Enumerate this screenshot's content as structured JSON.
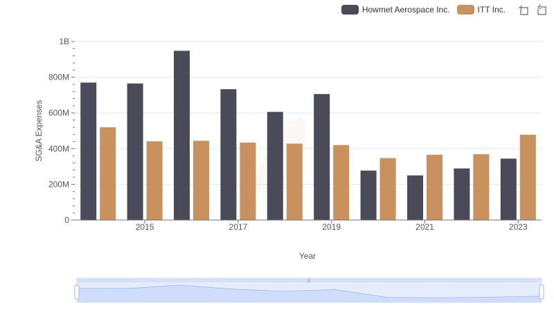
{
  "chart_data": {
    "type": "bar",
    "title": "",
    "xlabel": "Year",
    "ylabel": "SG&A Expenses",
    "x": [
      2014,
      2015,
      2016,
      2017,
      2018,
      2019,
      2020,
      2021,
      2022,
      2023
    ],
    "x_tick_labels": [
      "2015",
      "2017",
      "2019",
      "2021",
      "2023"
    ],
    "x_tick_values": [
      2015,
      2017,
      2019,
      2021,
      2023
    ],
    "y_tick_labels": [
      "0",
      "200M",
      "400M",
      "600M",
      "800M",
      "1B"
    ],
    "ylim": [
      0,
      1000000000
    ],
    "grid": true,
    "legend_position": "top-right",
    "series": [
      {
        "name": "Howmet Aerospace Inc.",
        "color": "#4a4a58",
        "values": [
          770000000,
          765000000,
          948000000,
          733000000,
          606000000,
          706000000,
          277000000,
          250000000,
          289000000,
          344000000
        ]
      },
      {
        "name": "ITT Inc.",
        "color": "#c8915d",
        "values": [
          520000000,
          441000000,
          444000000,
          434000000,
          428000000,
          420000000,
          347000000,
          366000000,
          369000000,
          478000000
        ]
      }
    ]
  },
  "toolbox": {
    "zoom_icon": "data-zoom-icon",
    "reset_icon": "zoom-reset-icon"
  },
  "datazoom": {
    "fill_color": "#d4e0fb",
    "line_color": "#8fa8e8"
  }
}
